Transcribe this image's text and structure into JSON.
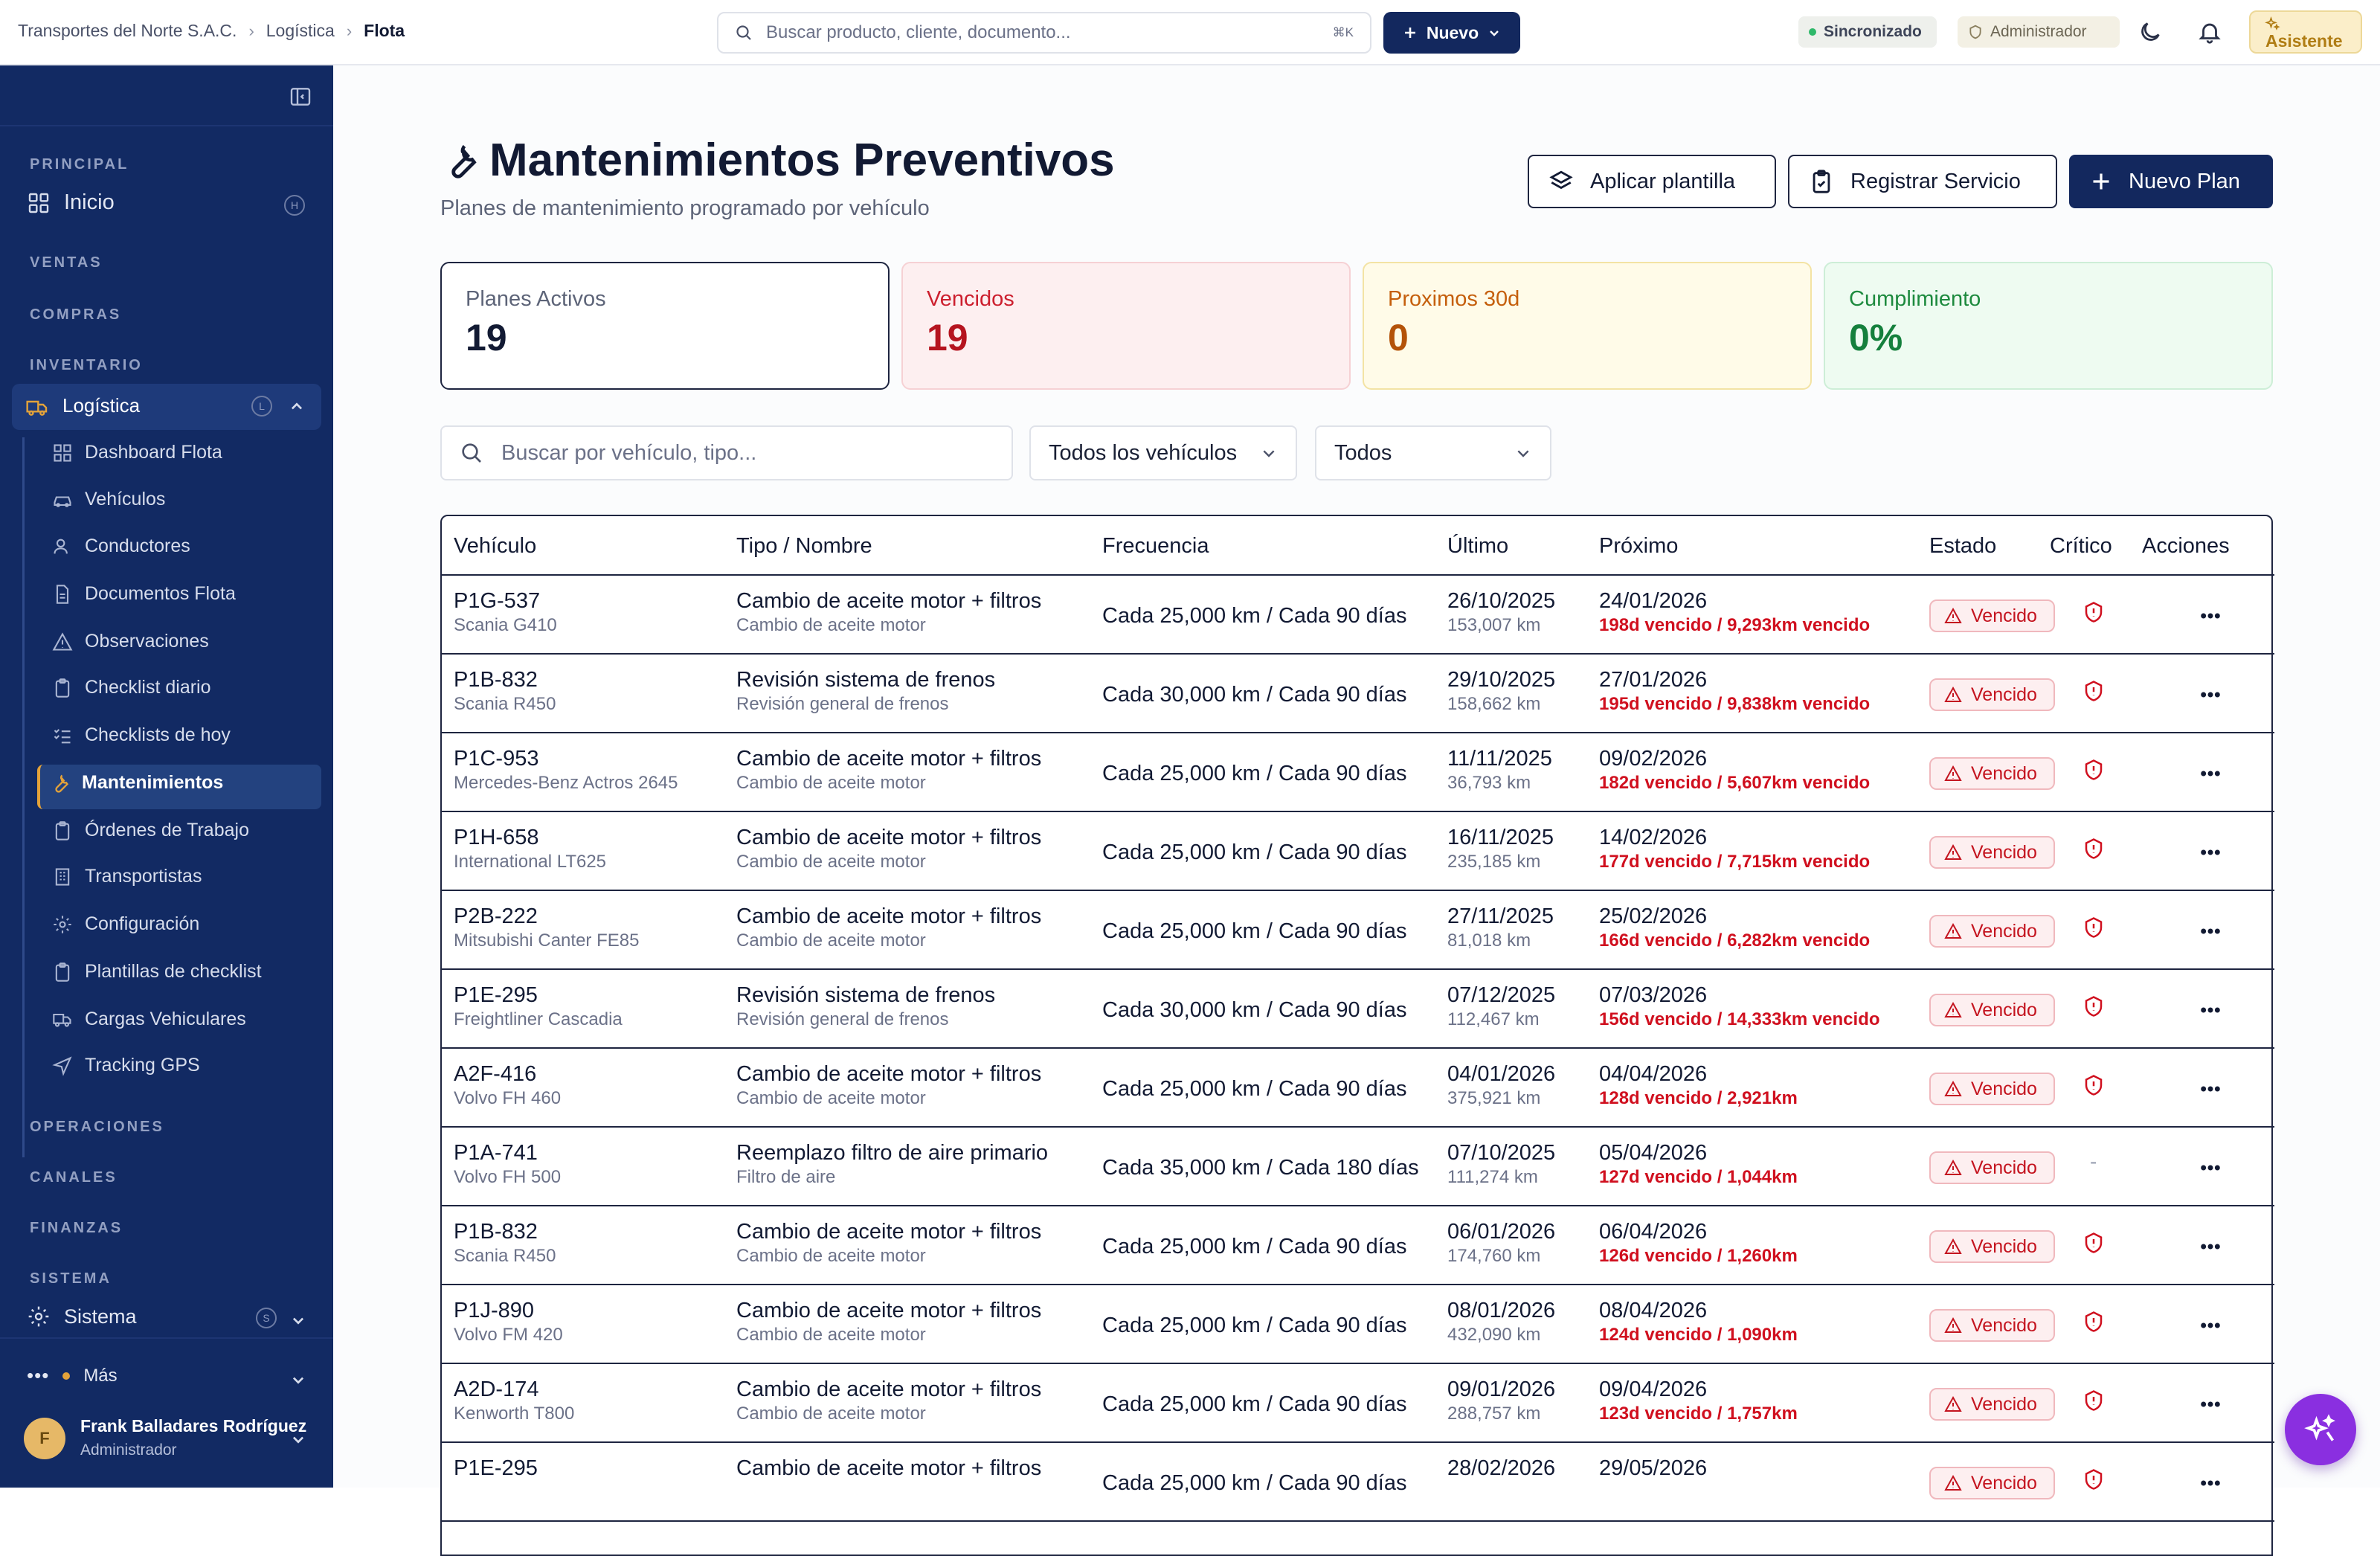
{
  "topbar": {
    "breadcrumb": [
      "Transportes del Norte S.A.C.",
      "Logística",
      "Flota"
    ],
    "search_placeholder": "Buscar producto, cliente, documento...",
    "search_shortcut": "⌘K",
    "nuevo_label": "Nuevo",
    "sync_label": "Sincronizado",
    "role_label": "Administrador",
    "assistant_label": "Asistente",
    "colors": {
      "nuevo_bg": "#13285e",
      "sync_dot": "#2fb86a",
      "assistant_bg": "#fbeec9"
    }
  },
  "sidebar": {
    "sections": {
      "principal": "PRINCIPAL",
      "ventas": "VENTAS",
      "compras": "COMPRAS",
      "inventario": "INVENTARIO",
      "operaciones": "OPERACIONES",
      "canales": "CANALES",
      "finanzas": "FINANZAS",
      "sistema": "SISTEMA"
    },
    "inicio": {
      "label": "Inicio",
      "shortcut": "H"
    },
    "logistica": {
      "label": "Logística",
      "shortcut": "L"
    },
    "sistema": {
      "label": "Sistema",
      "shortcut": "S"
    },
    "items": [
      {
        "label": "Dashboard Flota",
        "icon": "dashboard-icon"
      },
      {
        "label": "Vehículos",
        "icon": "car-icon"
      },
      {
        "label": "Conductores",
        "icon": "user-icon"
      },
      {
        "label": "Documentos Flota",
        "icon": "document-icon"
      },
      {
        "label": "Observaciones",
        "icon": "warning-icon"
      },
      {
        "label": "Checklist diario",
        "icon": "clipboard-icon"
      },
      {
        "label": "Checklists de hoy",
        "icon": "list-check-icon"
      },
      {
        "label": "Mantenimientos",
        "icon": "wrench-icon"
      },
      {
        "label": "Órdenes de Trabajo",
        "icon": "clipboard-icon"
      },
      {
        "label": "Transportistas",
        "icon": "building-icon"
      },
      {
        "label": "Configuración",
        "icon": "gear-icon"
      },
      {
        "label": "Plantillas de checklist",
        "icon": "clipboard-icon"
      },
      {
        "label": "Cargas Vehiculares",
        "icon": "truck-icon"
      },
      {
        "label": "Tracking GPS",
        "icon": "navigation-icon"
      }
    ],
    "active_item": "Mantenimientos",
    "more_label": "Más",
    "user": {
      "initial": "F",
      "name": "Frank Balladares Rodríguez",
      "role": "Administrador"
    },
    "colors": {
      "bg": "#122a63",
      "accent": "#e3a23a"
    }
  },
  "page": {
    "title": "Mantenimientos Preventivos",
    "subtitle": "Planes de mantenimiento programado por vehículo",
    "buttons": {
      "apply_template": "Aplicar plantilla",
      "register_service": "Registrar Servicio",
      "new_plan": "Nuevo Plan"
    }
  },
  "kpis": [
    {
      "label": "Planes Activos",
      "value": "19"
    },
    {
      "label": "Vencidos",
      "value": "19"
    },
    {
      "label": "Proximos 30d",
      "value": "0"
    },
    {
      "label": "Cumplimiento",
      "value": "0%"
    }
  ],
  "filters": {
    "search_placeholder": "Buscar por vehículo, tipo...",
    "vehicle_select": "Todos los vehículos",
    "status_select": "Todos"
  },
  "table": {
    "headers": [
      "Vehículo",
      "Tipo / Nombre",
      "Frecuencia",
      "Último",
      "Próximo",
      "Estado",
      "Crítico",
      "Acciones"
    ],
    "rows": [
      {
        "plate": "P1G-537",
        "model": "Scania G410",
        "tipo": "Cambio de aceite motor + filtros",
        "nombre": "Cambio de aceite motor",
        "frecuencia": "Cada 25,000 km / Cada 90 días",
        "ultimo_fecha": "26/10/2025",
        "ultimo_km": "153,007 km",
        "proximo_fecha": "24/01/2026",
        "proximo_detalle": "198d vencido / 9,293km vencido",
        "estado": "Vencido",
        "critico": true
      },
      {
        "plate": "P1B-832",
        "model": "Scania R450",
        "tipo": "Revisión sistema de frenos",
        "nombre": "Revisión general de frenos",
        "frecuencia": "Cada 30,000 km / Cada 90 días",
        "ultimo_fecha": "29/10/2025",
        "ultimo_km": "158,662 km",
        "proximo_fecha": "27/01/2026",
        "proximo_detalle": "195d vencido / 9,838km vencido",
        "estado": "Vencido",
        "critico": true
      },
      {
        "plate": "P1C-953",
        "model": "Mercedes-Benz Actros 2645",
        "tipo": "Cambio de aceite motor + filtros",
        "nombre": "Cambio de aceite motor",
        "frecuencia": "Cada 25,000 km / Cada 90 días",
        "ultimo_fecha": "11/11/2025",
        "ultimo_km": "36,793 km",
        "proximo_fecha": "09/02/2026",
        "proximo_detalle": "182d vencido / 5,607km vencido",
        "estado": "Vencido",
        "critico": true
      },
      {
        "plate": "P1H-658",
        "model": "International LT625",
        "tipo": "Cambio de aceite motor + filtros",
        "nombre": "Cambio de aceite motor",
        "frecuencia": "Cada 25,000 km / Cada 90 días",
        "ultimo_fecha": "16/11/2025",
        "ultimo_km": "235,185 km",
        "proximo_fecha": "14/02/2026",
        "proximo_detalle": "177d vencido / 7,715km vencido",
        "estado": "Vencido",
        "critico": true
      },
      {
        "plate": "P2B-222",
        "model": "Mitsubishi Canter FE85",
        "tipo": "Cambio de aceite motor + filtros",
        "nombre": "Cambio de aceite motor",
        "frecuencia": "Cada 25,000 km / Cada 90 días",
        "ultimo_fecha": "27/11/2025",
        "ultimo_km": "81,018 km",
        "proximo_fecha": "25/02/2026",
        "proximo_detalle": "166d vencido / 6,282km vencido",
        "estado": "Vencido",
        "critico": true
      },
      {
        "plate": "P1E-295",
        "model": "Freightliner Cascadia",
        "tipo": "Revisión sistema de frenos",
        "nombre": "Revisión general de frenos",
        "frecuencia": "Cada 30,000 km / Cada 90 días",
        "ultimo_fecha": "07/12/2025",
        "ultimo_km": "112,467 km",
        "proximo_fecha": "07/03/2026",
        "proximo_detalle": "156d vencido / 14,333km vencido",
        "estado": "Vencido",
        "critico": true
      },
      {
        "plate": "A2F-416",
        "model": "Volvo FH 460",
        "tipo": "Cambio de aceite motor + filtros",
        "nombre": "Cambio de aceite motor",
        "frecuencia": "Cada 25,000 km / Cada 90 días",
        "ultimo_fecha": "04/01/2026",
        "ultimo_km": "375,921 km",
        "proximo_fecha": "04/04/2026",
        "proximo_detalle": "128d vencido / 2,921km",
        "estado": "Vencido",
        "critico": true
      },
      {
        "plate": "P1A-741",
        "model": "Volvo FH 500",
        "tipo": "Reemplazo filtro de aire primario",
        "nombre": "Filtro de aire",
        "frecuencia": "Cada 35,000 km / Cada 180 días",
        "ultimo_fecha": "07/10/2025",
        "ultimo_km": "111,274 km",
        "proximo_fecha": "05/04/2026",
        "proximo_detalle": "127d vencido / 1,044km",
        "estado": "Vencido",
        "critico": false,
        "critico_text": "-"
      },
      {
        "plate": "P1B-832",
        "model": "Scania R450",
        "tipo": "Cambio de aceite motor + filtros",
        "nombre": "Cambio de aceite motor",
        "frecuencia": "Cada 25,000 km / Cada 90 días",
        "ultimo_fecha": "06/01/2026",
        "ultimo_km": "174,760 km",
        "proximo_fecha": "06/04/2026",
        "proximo_detalle": "126d vencido / 1,260km",
        "estado": "Vencido",
        "critico": true
      },
      {
        "plate": "P1J-890",
        "model": "Volvo FM 420",
        "tipo": "Cambio de aceite motor + filtros",
        "nombre": "Cambio de aceite motor",
        "frecuencia": "Cada 25,000 km / Cada 90 días",
        "ultimo_fecha": "08/01/2026",
        "ultimo_km": "432,090 km",
        "proximo_fecha": "08/04/2026",
        "proximo_detalle": "124d vencido / 1,090km",
        "estado": "Vencido",
        "critico": true
      },
      {
        "plate": "A2D-174",
        "model": "Kenworth T800",
        "tipo": "Cambio de aceite motor + filtros",
        "nombre": "Cambio de aceite motor",
        "frecuencia": "Cada 25,000 km / Cada 90 días",
        "ultimo_fecha": "09/01/2026",
        "ultimo_km": "288,757 km",
        "proximo_fecha": "09/04/2026",
        "proximo_detalle": "123d vencido / 1,757km",
        "estado": "Vencido",
        "critico": true
      },
      {
        "plate": "P1E-295",
        "model": "",
        "tipo": "Cambio de aceite motor + filtros",
        "nombre": "",
        "frecuencia": "Cada 25,000 km / Cada 90 días",
        "ultimo_fecha": "28/02/2026",
        "ultimo_km": "",
        "proximo_fecha": "29/05/2026",
        "proximo_detalle": "",
        "estado": "Vencido",
        "critico": true
      }
    ]
  },
  "colors": {
    "danger": "#d0101f",
    "warning": "#b45309",
    "success": "#15803d",
    "primary": "#13285e",
    "fab": "#8a2fe0"
  }
}
